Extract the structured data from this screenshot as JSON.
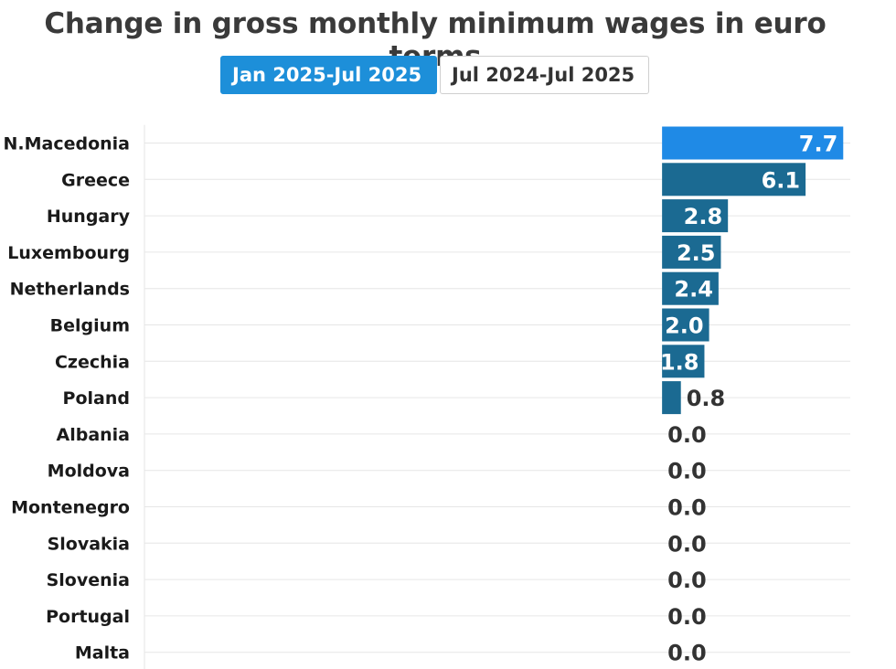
{
  "title": "Change in gross monthly minimum wages in euro terms",
  "tabs": [
    {
      "label": "Jan 2025-Jul 2025",
      "active": true
    },
    {
      "label": "Jul 2024-Jul 2025",
      "active": false
    }
  ],
  "colors": {
    "highlight_bar": "#1f8ae6",
    "bar": "#1b6a92",
    "tab_active": "#1d8fd9",
    "grid": "#e6e6e6"
  },
  "chart_data": {
    "type": "bar",
    "orientation": "horizontal",
    "title": "Change in gross monthly minimum wages in euro terms",
    "categories": [
      "N.Macedonia",
      "Greece",
      "Hungary",
      "Luxembourg",
      "Netherlands",
      "Belgium",
      "Czechia",
      "Poland",
      "Albania",
      "Moldova",
      "Montenegro",
      "Slovakia",
      "Slovenia",
      "Portugal",
      "Malta"
    ],
    "values": [
      7.7,
      6.1,
      2.8,
      2.5,
      2.4,
      2.0,
      1.8,
      0.8,
      0.0,
      0.0,
      0.0,
      0.0,
      0.0,
      0.0,
      0.0
    ],
    "labels": [
      "7.7",
      "6.1",
      "2.8",
      "2.5",
      "2.4",
      "2.0",
      "1.8",
      "0.8",
      "0.0",
      "0.0",
      "0.0",
      "0.0",
      "0.0",
      "0.0",
      "0.0"
    ],
    "highlighted": "N.Macedonia",
    "xlim": [
      -22.0,
      8.0
    ],
    "grid": true,
    "legend": "none"
  }
}
